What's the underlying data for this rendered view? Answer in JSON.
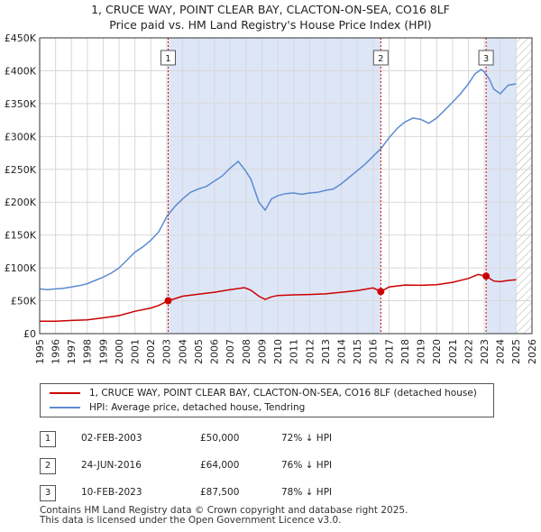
{
  "title_line1": "1, CRUCE WAY, POINT CLEAR BAY, CLACTON-ON-SEA, CO16 8LF",
  "title_line2": "Price paid vs. HM Land Registry's House Price Index (HPI)",
  "legend": {
    "property_label": "1, CRUCE WAY, POINT CLEAR BAY, CLACTON-ON-SEA, CO16 8LF (detached house)",
    "hpi_label": "HPI: Average price, detached house, Tendring"
  },
  "sales": [
    {
      "num": "1",
      "date": "02-FEB-2003",
      "price": "£50,000",
      "hpi": "72% ↓ HPI"
    },
    {
      "num": "2",
      "date": "24-JUN-2016",
      "price": "£64,000",
      "hpi": "76% ↓ HPI"
    },
    {
      "num": "3",
      "date": "10-FEB-2023",
      "price": "£87,500",
      "hpi": "78% ↓ HPI"
    }
  ],
  "footer": {
    "line1": "Contains HM Land Registry data © Crown copyright and database right 2025.",
    "line2": "This data is licensed under the Open Government Licence v3.0."
  },
  "colors": {
    "property": "#cc0000",
    "hpi": "#5b8bd0",
    "shade": "#dde6f7",
    "grid": "#d8d8d8",
    "hatch": "#aaaaaa"
  },
  "chart_data": {
    "type": "line",
    "xlim": [
      1995,
      2026
    ],
    "ylim": [
      0,
      450000
    ],
    "x_ticks": [
      1995,
      1996,
      1997,
      1998,
      1999,
      2000,
      2001,
      2002,
      2003,
      2004,
      2005,
      2006,
      2007,
      2008,
      2009,
      2010,
      2011,
      2012,
      2013,
      2014,
      2015,
      2016,
      2017,
      2018,
      2019,
      2020,
      2021,
      2022,
      2023,
      2024,
      2025,
      2026
    ],
    "y_ticks": [
      0,
      50000,
      100000,
      150000,
      200000,
      250000,
      300000,
      350000,
      400000,
      450000
    ],
    "y_tick_labels": [
      "£0",
      "£50K",
      "£100K",
      "£150K",
      "£200K",
      "£250K",
      "£300K",
      "£350K",
      "£400K",
      "£450K"
    ],
    "shaded_ranges": [
      [
        2003.09,
        2016.48
      ],
      [
        2023.11,
        2025.0
      ]
    ],
    "hatched_from": 2025.0,
    "series": [
      {
        "name": "HPI: Average price, detached house, Tendring",
        "x": [
          1995,
          1995.5,
          1996,
          1996.5,
          1997,
          1997.5,
          1998,
          1998.5,
          1999,
          1999.5,
          2000,
          2000.5,
          2001,
          2001.5,
          2002,
          2002.5,
          2003,
          2003.5,
          2004,
          2004.5,
          2005,
          2005.5,
          2006,
          2006.5,
          2007,
          2007.5,
          2007.9,
          2008.3,
          2008.8,
          2009.2,
          2009.6,
          2010,
          2010.5,
          2011,
          2011.5,
          2012,
          2012.5,
          2013,
          2013.5,
          2014,
          2014.5,
          2015,
          2015.5,
          2016,
          2016.5,
          2017,
          2017.5,
          2018,
          2018.5,
          2019,
          2019.5,
          2020,
          2020.5,
          2021,
          2021.5,
          2022,
          2022.4,
          2022.8,
          2023,
          2023.3,
          2023.6,
          2024,
          2024.5,
          2025
        ],
        "values": [
          68000,
          67000,
          68000,
          69000,
          71000,
          73000,
          76000,
          81000,
          86000,
          92000,
          100000,
          112000,
          124000,
          132000,
          142000,
          155000,
          178000,
          193000,
          205000,
          215000,
          220000,
          224000,
          232000,
          240000,
          252000,
          262000,
          250000,
          235000,
          200000,
          188000,
          205000,
          210000,
          213000,
          214000,
          212000,
          214000,
          215000,
          218000,
          220000,
          228000,
          238000,
          248000,
          258000,
          270000,
          282000,
          298000,
          312000,
          322000,
          328000,
          326000,
          320000,
          328000,
          340000,
          352000,
          365000,
          380000,
          395000,
          402000,
          398000,
          388000,
          372000,
          365000,
          378000,
          380000
        ]
      },
      {
        "name": "1, CRUCE WAY, POINT CLEAR BAY, CLACTON-ON-SEA, CO16 8LF (detached house)",
        "x": [
          1995,
          1996,
          1997,
          1998,
          1999,
          2000,
          2001,
          2002,
          2002.5,
          2003.09,
          2004,
          2005,
          2006,
          2007,
          2007.9,
          2008.3,
          2008.8,
          2009.2,
          2009.6,
          2010,
          2011,
          2012,
          2013,
          2014,
          2015,
          2016,
          2016.48,
          2017,
          2018,
          2019,
          2020,
          2021,
          2022,
          2022.6,
          2023.11,
          2023.6,
          2024,
          2024.5,
          2025
        ],
        "values": [
          19000,
          19000,
          20000,
          21000,
          24000,
          27500,
          34000,
          39000,
          43000,
          50000,
          57000,
          60000,
          63000,
          67000,
          70000,
          66000,
          57000,
          52000,
          56000,
          58000,
          59000,
          59500,
          60500,
          63000,
          65500,
          69500,
          64000,
          71000,
          74000,
          73500,
          74500,
          78000,
          84000,
          90000,
          87500,
          80000,
          79000,
          81000,
          82000
        ]
      }
    ],
    "sale_points": [
      {
        "label": "1",
        "x": 2003.09,
        "value": 50000
      },
      {
        "label": "2",
        "x": 2016.48,
        "value": 64000
      },
      {
        "label": "3",
        "x": 2023.11,
        "value": 87500
      }
    ]
  }
}
